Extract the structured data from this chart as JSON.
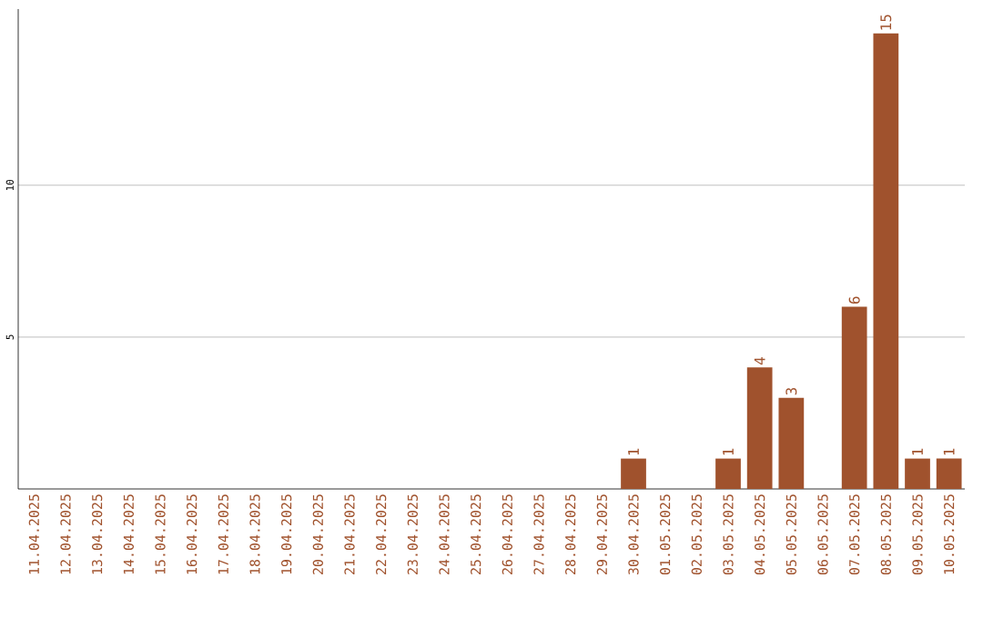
{
  "chart_data": {
    "type": "bar",
    "categories": [
      "11.04.2025",
      "12.04.2025",
      "13.04.2025",
      "14.04.2025",
      "15.04.2025",
      "16.04.2025",
      "17.04.2025",
      "18.04.2025",
      "19.04.2025",
      "20.04.2025",
      "21.04.2025",
      "22.04.2025",
      "23.04.2025",
      "24.04.2025",
      "25.04.2025",
      "26.04.2025",
      "27.04.2025",
      "28.04.2025",
      "29.04.2025",
      "30.04.2025",
      "01.05.2025",
      "02.05.2025",
      "03.05.2025",
      "04.05.2025",
      "05.05.2025",
      "06.05.2025",
      "07.05.2025",
      "08.05.2025",
      "09.05.2025",
      "10.05.2025"
    ],
    "values": [
      0,
      0,
      0,
      0,
      0,
      0,
      0,
      0,
      0,
      0,
      0,
      0,
      0,
      0,
      0,
      0,
      0,
      0,
      0,
      1,
      0,
      0,
      1,
      4,
      3,
      0,
      6,
      15,
      1,
      1
    ],
    "value_labels": [
      null,
      null,
      null,
      null,
      null,
      null,
      null,
      null,
      null,
      null,
      null,
      null,
      null,
      null,
      null,
      null,
      null,
      null,
      null,
      "1",
      null,
      null,
      "1",
      "4",
      "3",
      null,
      "6",
      "15",
      "1",
      "1"
    ],
    "color": "#a0522d",
    "ylim": [
      0,
      15.8
    ],
    "yticks": [
      5,
      10
    ],
    "grid": "y"
  }
}
